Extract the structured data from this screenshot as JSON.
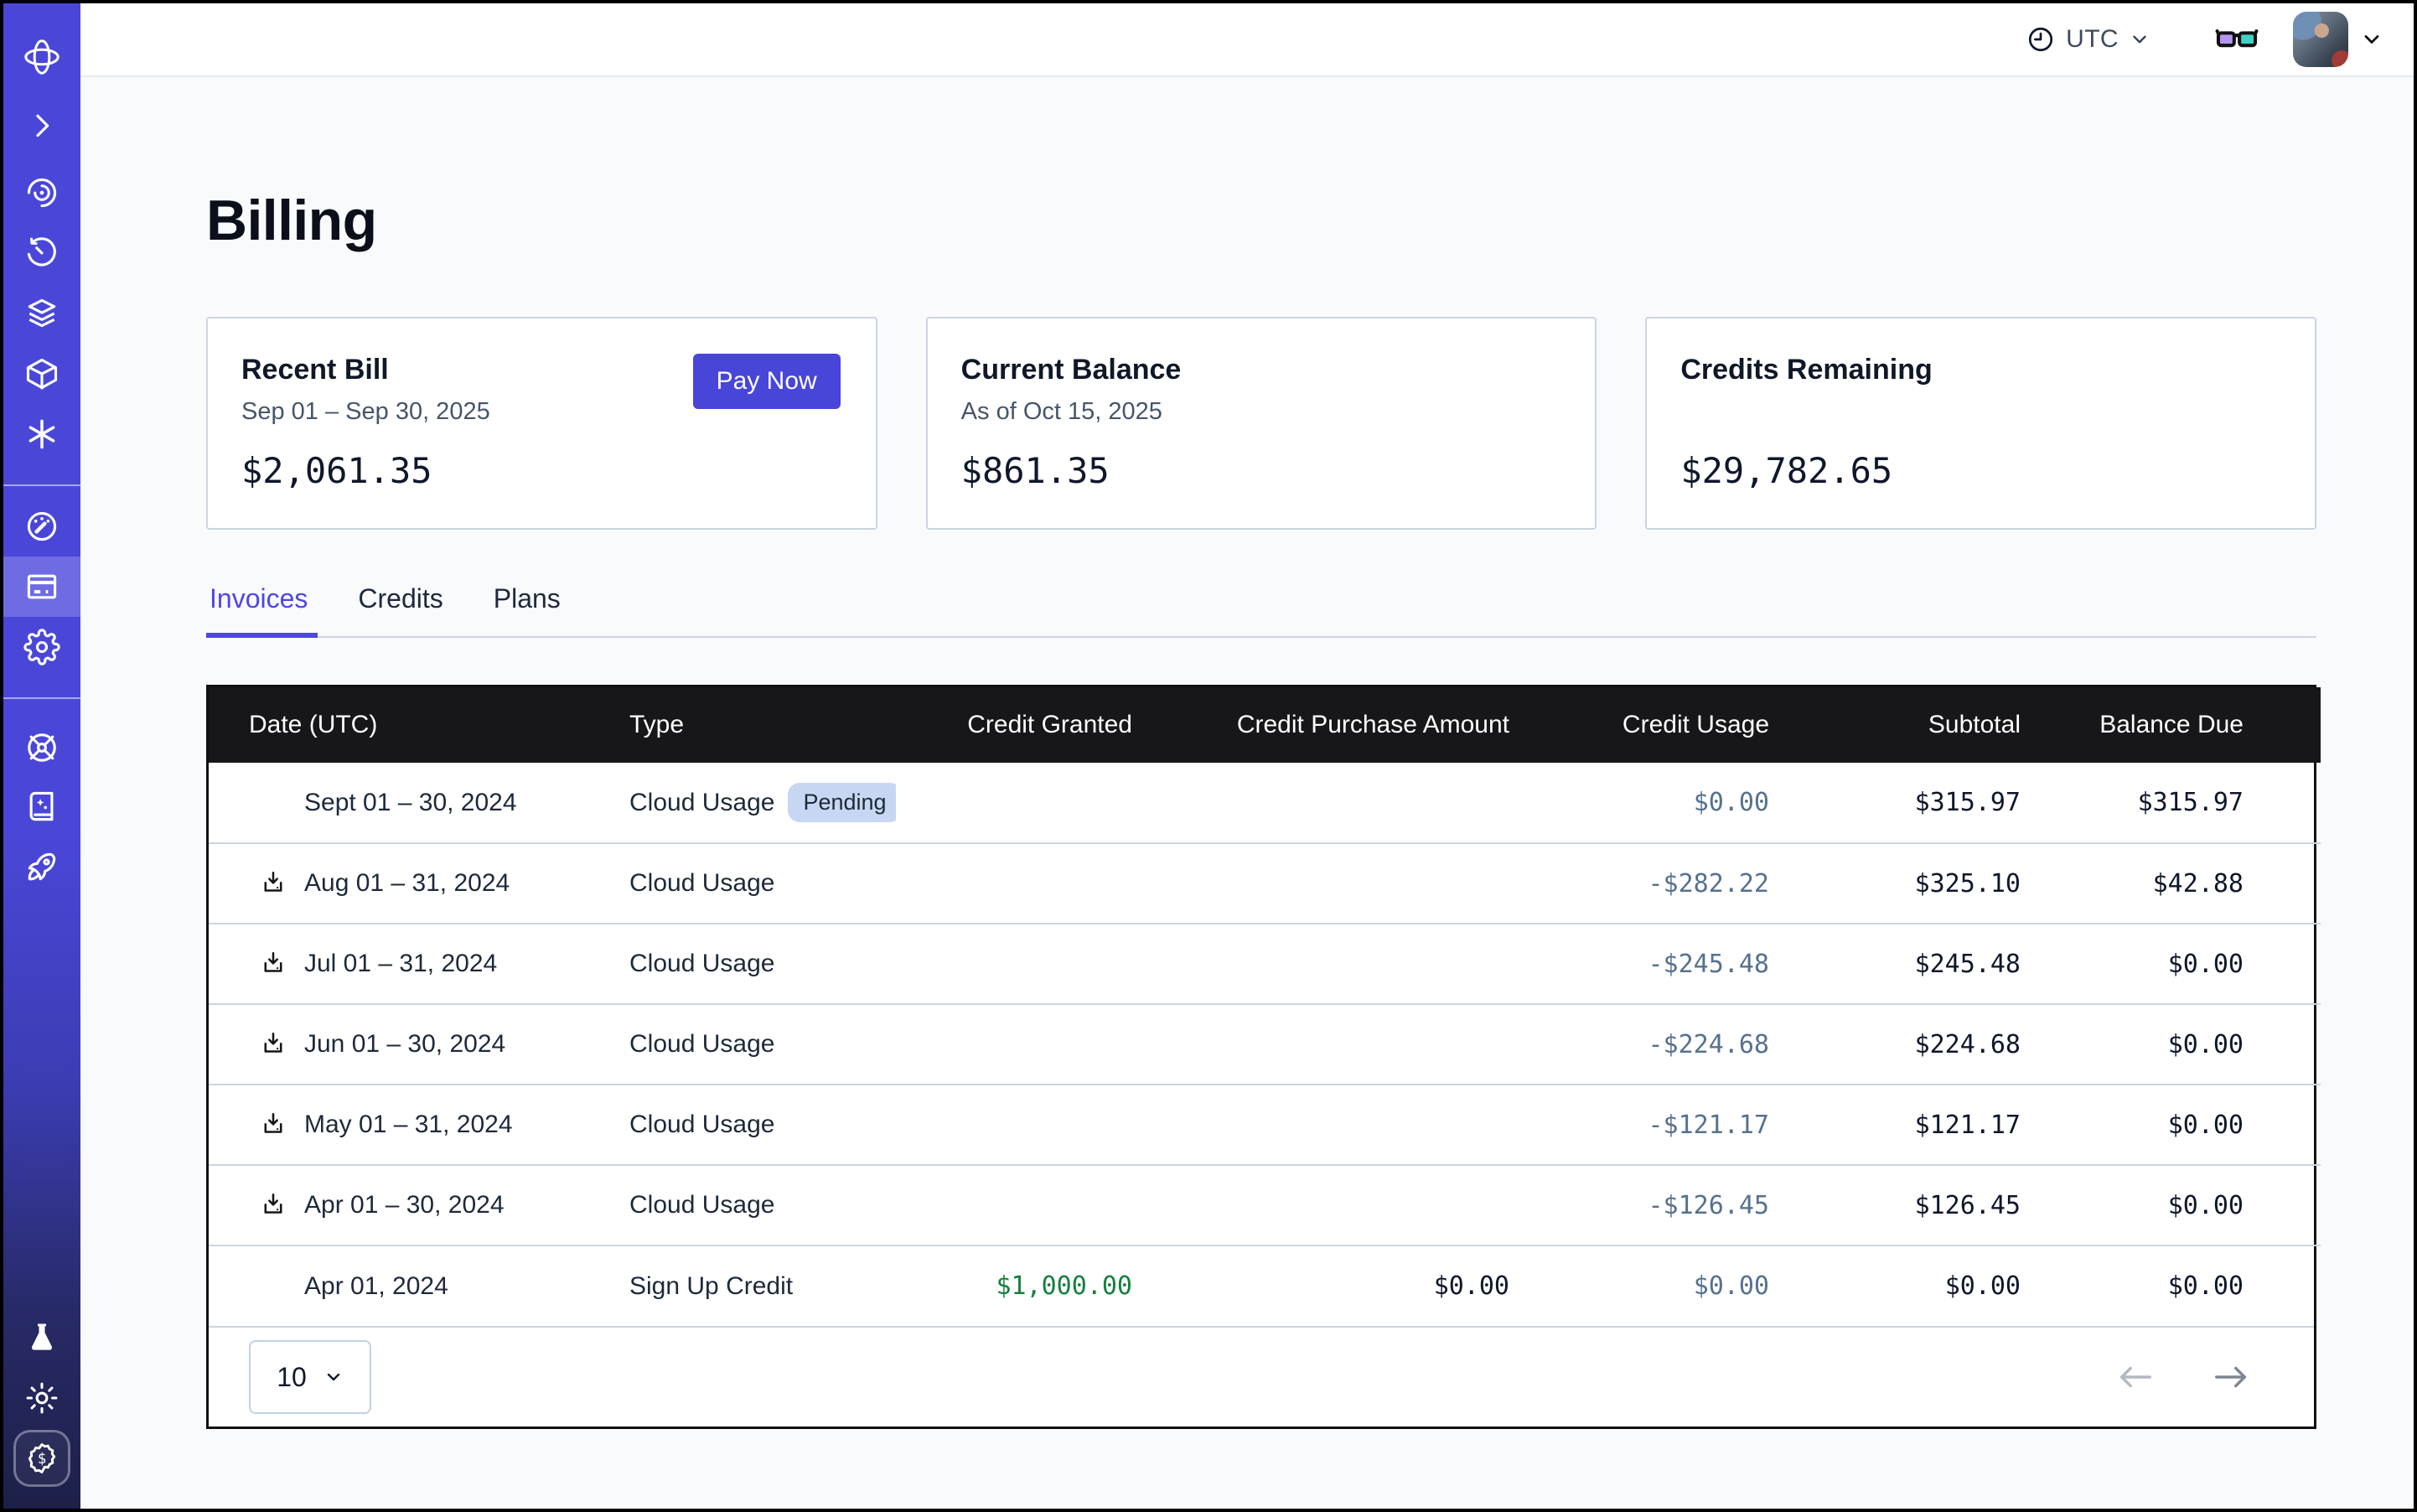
{
  "topbar": {
    "timezone": "UTC"
  },
  "page": {
    "title": "Billing"
  },
  "cards": [
    {
      "title": "Recent Bill",
      "subtitle": "Sep 01 – Sep 30, 2025",
      "amount": "$2,061.35",
      "action_label": "Pay Now"
    },
    {
      "title": "Current Balance",
      "subtitle": "As of Oct 15, 2025",
      "amount": "$861.35"
    },
    {
      "title": "Credits Remaining",
      "subtitle": "",
      "amount": "$29,782.65"
    }
  ],
  "tabs": [
    {
      "label": "Invoices",
      "active": true
    },
    {
      "label": "Credits",
      "active": false
    },
    {
      "label": "Plans",
      "active": false
    }
  ],
  "table": {
    "columns": [
      "Date (UTC)",
      "Type",
      "Credit Granted",
      "Credit Purchase Amount",
      "Credit Usage",
      "Subtotal",
      "Balance Due"
    ],
    "rows": [
      {
        "date": "Sept 01 – 30, 2024",
        "has_download": false,
        "type": "Cloud Usage",
        "status_badge": "Pending",
        "credit_granted": "",
        "credit_purchase_amount": "",
        "credit_usage": "$0.00",
        "subtotal": "$315.97",
        "balance_due": "$315.97"
      },
      {
        "date": "Aug 01 – 31, 2024",
        "has_download": true,
        "type": "Cloud Usage",
        "status_badge": "",
        "credit_granted": "",
        "credit_purchase_amount": "",
        "credit_usage": "-$282.22",
        "subtotal": "$325.10",
        "balance_due": "$42.88"
      },
      {
        "date": "Jul 01 – 31, 2024",
        "has_download": true,
        "type": "Cloud Usage",
        "status_badge": "",
        "credit_granted": "",
        "credit_purchase_amount": "",
        "credit_usage": "-$245.48",
        "subtotal": "$245.48",
        "balance_due": "$0.00"
      },
      {
        "date": "Jun 01 – 30, 2024",
        "has_download": true,
        "type": "Cloud Usage",
        "status_badge": "",
        "credit_granted": "",
        "credit_purchase_amount": "",
        "credit_usage": "-$224.68",
        "subtotal": "$224.68",
        "balance_due": "$0.00"
      },
      {
        "date": "May 01 – 31, 2024",
        "has_download": true,
        "type": "Cloud Usage",
        "status_badge": "",
        "credit_granted": "",
        "credit_purchase_amount": "",
        "credit_usage": "-$121.17",
        "subtotal": "$121.17",
        "balance_due": "$0.00"
      },
      {
        "date": "Apr 01 – 30, 2024",
        "has_download": true,
        "type": "Cloud Usage",
        "status_badge": "",
        "credit_granted": "",
        "credit_purchase_amount": "",
        "credit_usage": "-$126.45",
        "subtotal": "$126.45",
        "balance_due": "$0.00"
      },
      {
        "date": "Apr 01, 2024",
        "has_download": false,
        "type": "Sign Up Credit",
        "status_badge": "",
        "credit_granted": "$1,000.00",
        "credit_granted_positive": true,
        "credit_purchase_amount": "$0.00",
        "credit_usage": "$0.00",
        "subtotal": "$0.00",
        "balance_due": "$0.00"
      }
    ]
  },
  "pagination": {
    "page_size": "10"
  },
  "sidebar": {
    "items": [
      "logo",
      "collapse",
      "observability",
      "history",
      "layers",
      "deployments",
      "functions",
      "usage",
      "billing",
      "settings",
      "support",
      "docs",
      "get-started",
      "labs",
      "theme",
      "credits"
    ],
    "active_item": "billing"
  },
  "colors": {
    "accent": "#4845d9",
    "sidebar_top": "#4a47d8",
    "sidebar_bottom": "#1d2048",
    "table_header_bg": "#17171a",
    "credit_usage_text": "#56718f",
    "credit_positive_text": "#15803d",
    "pending_badge_bg": "#c7d7f3",
    "card_border": "#cbd5e1",
    "page_bg": "#f8fafc",
    "goggles_left_lens": "#b495ef",
    "goggles_right_lens": "#3fd3c3"
  }
}
